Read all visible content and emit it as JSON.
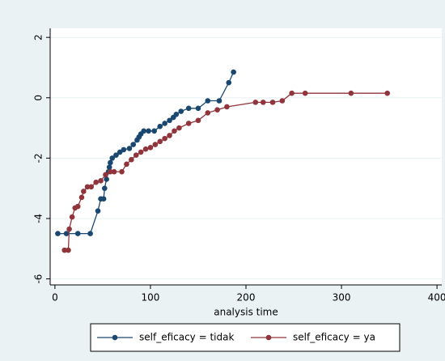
{
  "chart_data": {
    "type": "line",
    "x_label": "analysis time",
    "xlim": [
      -5,
      405
    ],
    "xticks": [
      0,
      100,
      200,
      300,
      400
    ],
    "ylim": [
      -6.2,
      2.3
    ],
    "yticks": [
      -6,
      -4,
      -2,
      0,
      2
    ],
    "grid": true,
    "legend": "bottom",
    "series": [
      {
        "name": "self_eficacy = tidak",
        "color": "#1a476f",
        "x": [
          3,
          12,
          24,
          37,
          45,
          48,
          51,
          52,
          54,
          56,
          57,
          58,
          60,
          64,
          68,
          72,
          78,
          82,
          86,
          88,
          90,
          93,
          98,
          104,
          110,
          115,
          120,
          124,
          127,
          132,
          140,
          150,
          160,
          172,
          182,
          187
        ],
        "values": [
          -4.5,
          -4.5,
          -4.5,
          -4.5,
          -3.75,
          -3.35,
          -3.35,
          -3.0,
          -2.7,
          -2.45,
          -2.3,
          -2.15,
          -2.0,
          -1.9,
          -1.8,
          -1.72,
          -1.68,
          -1.55,
          -1.4,
          -1.3,
          -1.2,
          -1.1,
          -1.1,
          -1.1,
          -0.95,
          -0.85,
          -0.75,
          -0.65,
          -0.55,
          -0.45,
          -0.35,
          -0.35,
          -0.1,
          -0.1,
          0.5,
          0.85
        ]
      },
      {
        "name": "self_eficacy = ya",
        "color": "#90353b",
        "x": [
          10,
          14,
          15,
          18,
          21,
          24,
          28,
          30,
          34,
          38,
          43,
          48,
          53,
          58,
          62,
          70,
          75,
          80,
          85,
          90,
          95,
          100,
          105,
          110,
          115,
          120,
          125,
          130,
          140,
          150,
          160,
          170,
          180,
          210,
          218,
          228,
          238,
          248,
          262,
          310,
          348
        ],
        "values": [
          -5.05,
          -5.05,
          -4.35,
          -3.95,
          -3.65,
          -3.6,
          -3.3,
          -3.1,
          -2.95,
          -2.95,
          -2.8,
          -2.75,
          -2.55,
          -2.45,
          -2.45,
          -2.45,
          -2.2,
          -2.05,
          -1.9,
          -1.8,
          -1.7,
          -1.65,
          -1.55,
          -1.45,
          -1.35,
          -1.25,
          -1.1,
          -1.0,
          -0.85,
          -0.75,
          -0.5,
          -0.4,
          -0.3,
          -0.15,
          -0.15,
          -0.15,
          -0.1,
          0.15,
          0.15,
          0.15,
          0.15
        ]
      }
    ]
  }
}
